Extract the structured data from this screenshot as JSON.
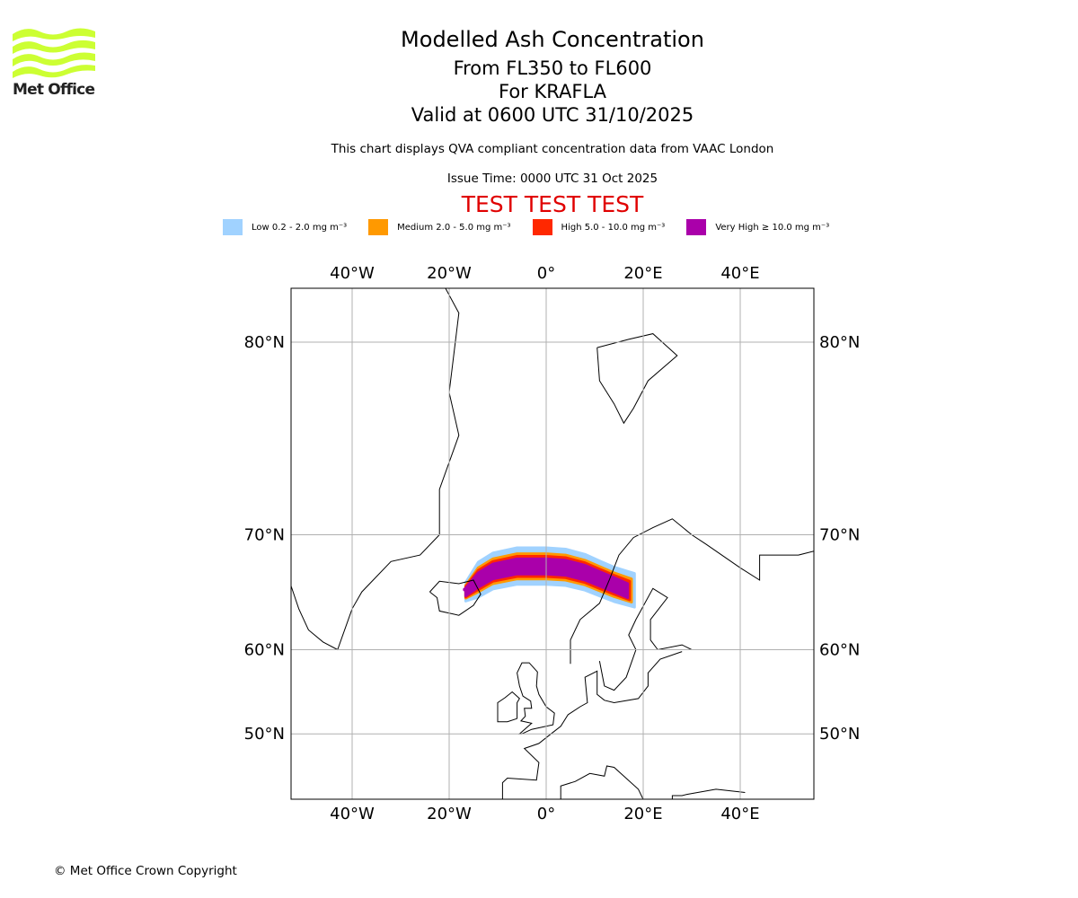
{
  "header": {
    "title": "Modelled Ash Concentration",
    "levels": "From FL350 to FL600",
    "volcano": "For KRAFLA",
    "valid": "Valid at 0600 UTC 31/10/2025",
    "description": "This chart displays QVA compliant concentration data from VAAC London",
    "issue_time": "Issue Time: 0000 UTC 31 Oct 2025",
    "test_banner": "TEST TEST TEST"
  },
  "logo": {
    "text": "Met Office"
  },
  "legend": [
    {
      "label": "Low 0.2 - 2.0 mg m⁻³",
      "color": "#a0d2ff"
    },
    {
      "label": "Medium 2.0 - 5.0 mg m⁻³",
      "color": "#ff9900"
    },
    {
      "label": "High 5.0 - 10.0 mg m⁻³",
      "color": "#ff2800"
    },
    {
      "label": "Very High ≥ 10.0 mg m⁻³",
      "color": "#aa00aa"
    }
  ],
  "chart_data": {
    "type": "map",
    "projection": "Mercator",
    "lon_range": [
      -52.6,
      55.2
    ],
    "lat_range": [
      40.4,
      82.6
    ],
    "lon_ticks": [
      {
        "value": -40,
        "label": "40°W"
      },
      {
        "value": -20,
        "label": "20°W"
      },
      {
        "value": 0,
        "label": "0°"
      },
      {
        "value": 20,
        "label": "20°E"
      },
      {
        "value": 40,
        "label": "40°E"
      }
    ],
    "lat_ticks": [
      {
        "value": 80,
        "label": "80°N"
      },
      {
        "value": 70,
        "label": "70°N"
      },
      {
        "value": 60,
        "label": "60°N"
      },
      {
        "value": 50,
        "label": "50°N"
      }
    ],
    "grid": true,
    "plume": {
      "source_lon": -16.8,
      "source_lat": 65.7,
      "extent_lon": [
        -17,
        18
      ],
      "extent_lat": [
        63.8,
        69.8
      ]
    }
  },
  "footer": {
    "copyright": "© Met Office Crown Copyright"
  }
}
